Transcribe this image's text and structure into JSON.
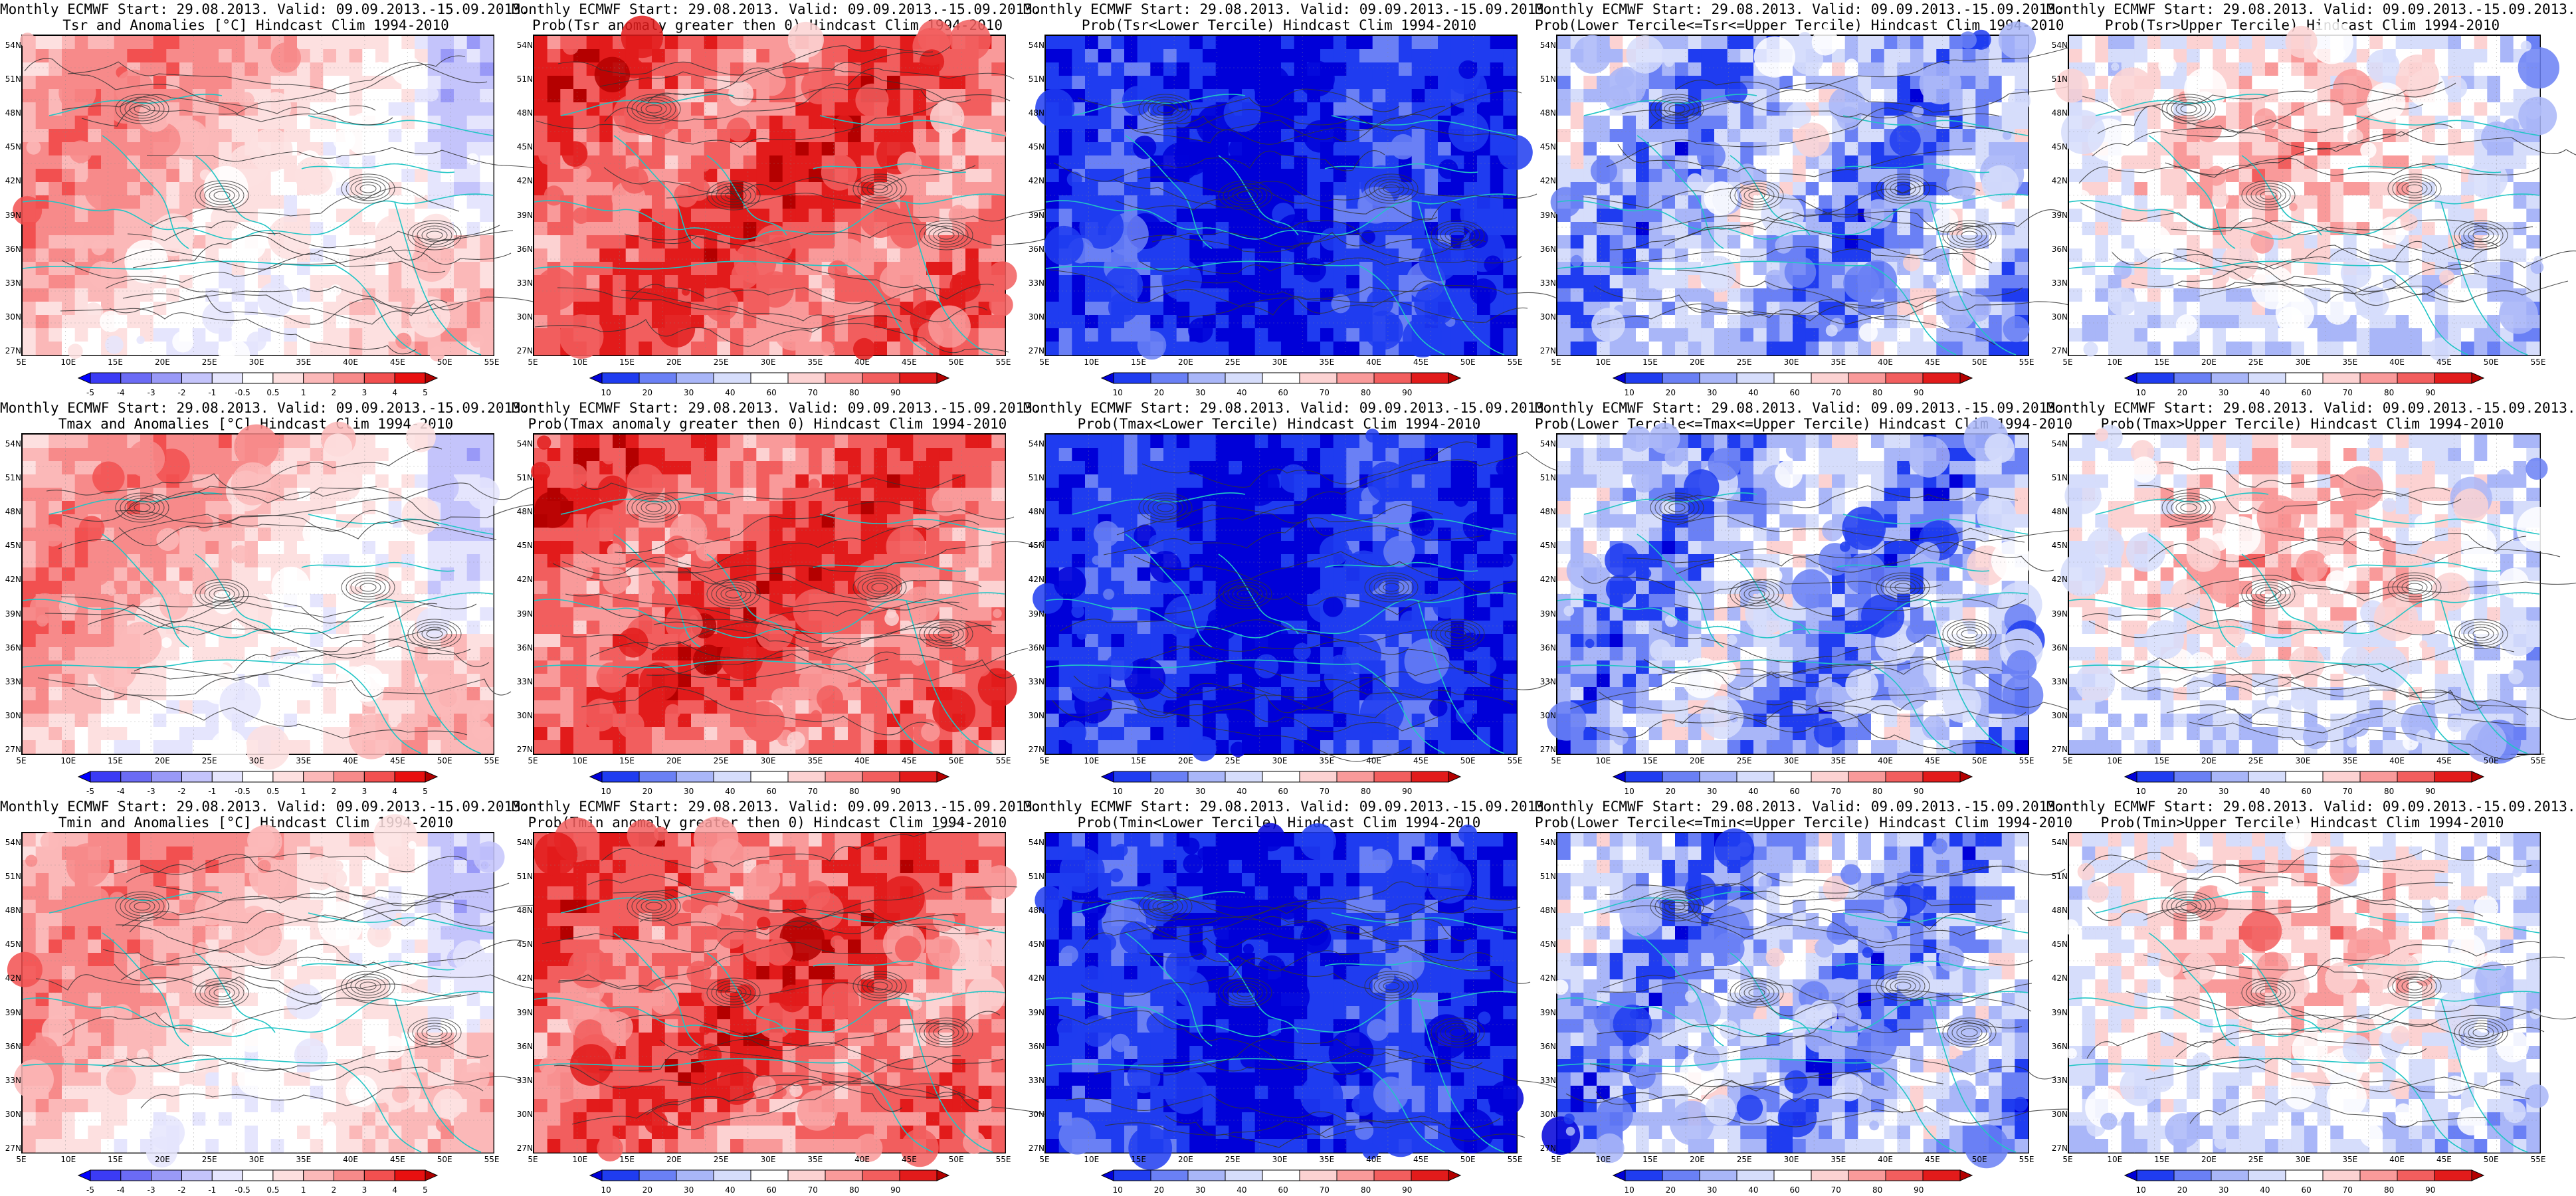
{
  "figure": {
    "lat_ticks": [
      "54N",
      "51N",
      "48N",
      "45N",
      "42N",
      "39N",
      "36N",
      "33N",
      "30N",
      "27N"
    ],
    "lon_ticks": [
      "5E",
      "10E",
      "15E",
      "20E",
      "25E",
      "30E",
      "35E",
      "40E",
      "45E",
      "50E",
      "55E"
    ],
    "anom_ticks": [
      "-5",
      "-4",
      "-3",
      "-2",
      "-1",
      "-0.5",
      "0.5",
      "1",
      "2",
      "3",
      "4",
      "5"
    ],
    "prob_ticks": [
      "10",
      "20",
      "30",
      "40",
      "60",
      "70",
      "80",
      "90"
    ],
    "anom_colors": [
      "#0000ff",
      "#3b3bf5",
      "#6b6bf5",
      "#9999f7",
      "#c4c4fb",
      "#e5e5fd",
      "#ffffff",
      "#fde0e0",
      "#fbb8b8",
      "#f78a8a",
      "#f25050",
      "#e81010",
      "#b00000"
    ],
    "prob_colors": [
      "#0000d8",
      "#1f3cf0",
      "#6a80f5",
      "#a9b6f8",
      "#d6ddfb",
      "#ffffff",
      "#fcd2d2",
      "#f99a9a",
      "#f25e5e",
      "#e21b1b",
      "#b40000"
    ],
    "land_line_color": "#21c5c5",
    "contour_color": "#333333"
  },
  "panels": [
    {
      "line1": "Monthly ECMWF Start: 29.08.2013. Valid: 09.09.2013.-15.09.2013.",
      "line2": "Tsr and Anomalies [°C] Hindcast Clim 1994-2010",
      "scale": "anom",
      "theme": "warm_light",
      "seed": 11
    },
    {
      "line1": "Monthly ECMWF Start: 29.08.2013. Valid: 09.09.2013.-15.09.2013.",
      "line2": "Prob(Tsr anomaly greater then 0) Hindcast Clim 1994-2010",
      "scale": "prob",
      "theme": "warm_strong",
      "seed": 12
    },
    {
      "line1": "Monthly ECMWF Start: 29.08.2013. Valid: 09.09.2013.-15.09.2013.",
      "line2": "Prob(Tsr<Lower Tercile) Hindcast Clim 1994-2010",
      "scale": "prob",
      "theme": "cold_strong",
      "seed": 13
    },
    {
      "line1": "Monthly ECMWF Start: 29.08.2013. Valid: 09.09.2013.-15.09.2013.",
      "line2": "Prob(Lower Tercile<=Tsr<=Upper Tercile) Hindcast Clim 1994-2010",
      "scale": "prob",
      "theme": "cold_mixed",
      "seed": 14
    },
    {
      "line1": "Monthly ECMWF Start: 29.08.2013. Valid: 09.09.2013.-15.09.2013.",
      "line2": "Prob(Tsr>Upper Tercile) Hindcast Clim 1994-2010",
      "scale": "prob",
      "theme": "upper",
      "seed": 15
    },
    {
      "line1": "Monthly ECMWF Start: 29.08.2013. Valid: 09.09.2013.-15.09.2013.",
      "line2": "Tmax and Anomalies [°C] Hindcast Clim 1994-2010",
      "scale": "anom",
      "theme": "warm_light",
      "seed": 21
    },
    {
      "line1": "Monthly ECMWF Start: 29.08.2013. Valid: 09.09.2013.-15.09.2013.",
      "line2": "Prob(Tmax anomaly greater then 0) Hindcast Clim 1994-2010",
      "scale": "prob",
      "theme": "warm_strong",
      "seed": 22
    },
    {
      "line1": "Monthly ECMWF Start: 29.08.2013. Valid: 09.09.2013.-15.09.2013.",
      "line2": "Prob(Tmax<Lower Tercile) Hindcast Clim 1994-2010",
      "scale": "prob",
      "theme": "cold_strong",
      "seed": 23
    },
    {
      "line1": "Monthly ECMWF Start: 29.08.2013. Valid: 09.09.2013.-15.09.2013.",
      "line2": "Prob(Lower Tercile<=Tmax<=Upper Tercile) Hindcast Clim 1994-2010",
      "scale": "prob",
      "theme": "cold_mixed",
      "seed": 24
    },
    {
      "line1": "Monthly ECMWF Start: 29.08.2013. Valid: 09.09.2013.-15.09.2013.",
      "line2": "Prob(Tmax>Upper Tercile) Hindcast Clim 1994-2010",
      "scale": "prob",
      "theme": "upper",
      "seed": 25
    },
    {
      "line1": "Monthly ECMWF Start: 29.08.2013. Valid: 09.09.2013.-15.09.2013.",
      "line2": "Tmin and Anomalies [°C] Hindcast Clim 1994-2010",
      "scale": "anom",
      "theme": "warm_light",
      "seed": 31
    },
    {
      "line1": "Monthly ECMWF Start: 29.08.2013. Valid: 09.09.2013.-15.09.2013.",
      "line2": "Prob(Tmin anomaly greater then 0) Hindcast Clim 1994-2010",
      "scale": "prob",
      "theme": "warm_strong",
      "seed": 32
    },
    {
      "line1": "Monthly ECMWF Start: 29.08.2013. Valid: 09.09.2013.-15.09.2013.",
      "line2": "Prob(Tmin<Lower Tercile) Hindcast Clim 1994-2010",
      "scale": "prob",
      "theme": "cold_strong",
      "seed": 33
    },
    {
      "line1": "Monthly ECMWF Start: 29.08.2013. Valid: 09.09.2013.-15.09.2013.",
      "line2": "Prob(Lower Tercile<=Tmin<=Upper Tercile) Hindcast Clim 1994-2010",
      "scale": "prob",
      "theme": "cold_mixed",
      "seed": 34
    },
    {
      "line1": "Monthly ECMWF Start: 29.08.2013. Valid: 09.09.2013.-15.09.2013.",
      "line2": "Prob(Tmin>Upper Tercile) Hindcast Clim 1994-2010",
      "scale": "prob",
      "theme": "upper",
      "seed": 35
    }
  ]
}
